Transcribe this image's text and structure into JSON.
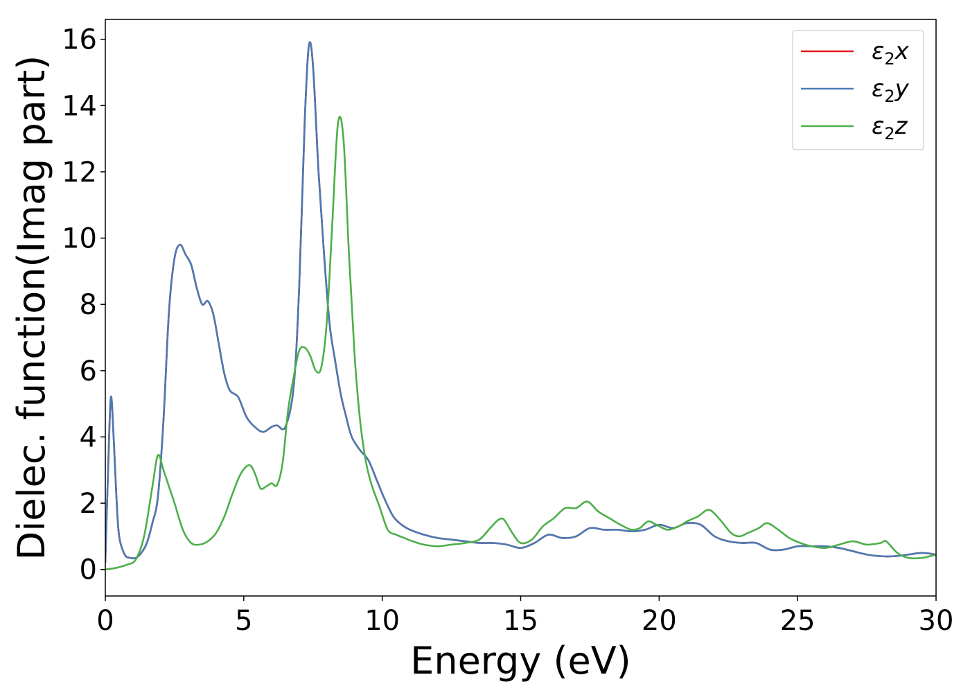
{
  "chart_data": {
    "type": "line",
    "xlabel": "Energy (eV)",
    "ylabel": "Dielec. function(Imag part)",
    "xlim": [
      0,
      30
    ],
    "ylim": [
      -0.8,
      16.6
    ],
    "xticks": [
      0,
      5,
      10,
      15,
      20,
      25,
      30
    ],
    "yticks": [
      0,
      2,
      4,
      6,
      8,
      10,
      12,
      14,
      16
    ],
    "grid": false,
    "legend_position": "top-right",
    "series": [
      {
        "name": "ε₂x",
        "legend_base": "ε",
        "legend_sub": "2",
        "legend_var": "x",
        "color": "#e41a1c",
        "x": [
          0,
          0.1,
          0.2,
          0.3,
          0.4,
          0.5,
          0.7,
          0.9,
          1.1,
          1.3,
          1.5,
          1.7,
          1.9,
          2.1,
          2.3,
          2.5,
          2.7,
          2.9,
          3.1,
          3.3,
          3.5,
          3.7,
          3.9,
          4.1,
          4.3,
          4.5,
          4.8,
          5.1,
          5.4,
          5.7,
          6.0,
          6.2,
          6.5,
          6.8,
          7.0,
          7.2,
          7.35,
          7.5,
          7.7,
          7.9,
          8.1,
          8.3,
          8.5,
          8.7,
          8.9,
          9.2,
          9.5,
          9.8,
          10.1,
          10.4,
          10.7,
          11.0,
          11.5,
          12.0,
          12.5,
          13.0,
          13.5,
          14.0,
          14.5,
          15.0,
          15.5,
          16.0,
          16.5,
          17.0,
          17.5,
          18.0,
          18.5,
          19.0,
          19.5,
          20.0,
          20.5,
          21.0,
          21.5,
          22.0,
          22.5,
          23.0,
          23.5,
          24.0,
          24.5,
          25.0,
          25.5,
          26.0,
          26.5,
          27.0,
          27.5,
          28.0,
          28.5,
          29.0,
          29.5,
          30.0
        ],
        "values": [
          0.2,
          3.0,
          5.2,
          4.0,
          2.2,
          1.0,
          0.45,
          0.35,
          0.35,
          0.5,
          0.8,
          1.4,
          2.2,
          4.5,
          7.8,
          9.4,
          9.8,
          9.5,
          9.2,
          8.5,
          8.0,
          8.1,
          7.7,
          6.8,
          5.9,
          5.4,
          5.2,
          4.6,
          4.3,
          4.15,
          4.3,
          4.35,
          4.3,
          5.5,
          8.5,
          13.5,
          15.8,
          15.2,
          12.0,
          9.5,
          7.4,
          6.3,
          5.3,
          4.6,
          4.0,
          3.6,
          3.3,
          2.7,
          2.1,
          1.6,
          1.35,
          1.2,
          1.05,
          0.95,
          0.9,
          0.85,
          0.8,
          0.8,
          0.75,
          0.65,
          0.8,
          1.05,
          0.95,
          1.0,
          1.25,
          1.2,
          1.2,
          1.15,
          1.2,
          1.35,
          1.25,
          1.4,
          1.35,
          1.0,
          0.85,
          0.8,
          0.8,
          0.6,
          0.6,
          0.7,
          0.7,
          0.7,
          0.65,
          0.55,
          0.45,
          0.4,
          0.4,
          0.45,
          0.5,
          0.45
        ]
      },
      {
        "name": "ε₂y",
        "legend_base": "ε",
        "legend_sub": "2",
        "legend_var": "y",
        "color": "#4a7ab3",
        "x": [
          0,
          0.1,
          0.2,
          0.3,
          0.4,
          0.5,
          0.7,
          0.9,
          1.1,
          1.3,
          1.5,
          1.7,
          1.9,
          2.1,
          2.3,
          2.5,
          2.7,
          2.9,
          3.1,
          3.3,
          3.5,
          3.7,
          3.9,
          4.1,
          4.3,
          4.5,
          4.8,
          5.1,
          5.4,
          5.7,
          6.0,
          6.2,
          6.5,
          6.8,
          7.0,
          7.2,
          7.35,
          7.5,
          7.7,
          7.9,
          8.1,
          8.3,
          8.5,
          8.7,
          8.9,
          9.2,
          9.5,
          9.8,
          10.1,
          10.4,
          10.7,
          11.0,
          11.5,
          12.0,
          12.5,
          13.0,
          13.5,
          14.0,
          14.5,
          15.0,
          15.5,
          16.0,
          16.5,
          17.0,
          17.5,
          18.0,
          18.5,
          19.0,
          19.5,
          20.0,
          20.5,
          21.0,
          21.5,
          22.0,
          22.5,
          23.0,
          23.5,
          24.0,
          24.5,
          25.0,
          25.5,
          26.0,
          26.5,
          27.0,
          27.5,
          28.0,
          28.5,
          29.0,
          29.5,
          30.0
        ],
        "values": [
          0.2,
          3.0,
          5.2,
          4.0,
          2.2,
          1.0,
          0.45,
          0.35,
          0.35,
          0.5,
          0.8,
          1.4,
          2.2,
          4.5,
          7.8,
          9.4,
          9.8,
          9.5,
          9.2,
          8.5,
          8.0,
          8.1,
          7.7,
          6.8,
          5.9,
          5.4,
          5.2,
          4.6,
          4.3,
          4.15,
          4.3,
          4.35,
          4.3,
          5.5,
          8.5,
          13.5,
          15.8,
          15.2,
          12.0,
          9.5,
          7.4,
          6.3,
          5.3,
          4.6,
          4.0,
          3.6,
          3.3,
          2.7,
          2.1,
          1.6,
          1.35,
          1.2,
          1.05,
          0.95,
          0.9,
          0.85,
          0.8,
          0.8,
          0.75,
          0.65,
          0.8,
          1.05,
          0.95,
          1.0,
          1.25,
          1.2,
          1.2,
          1.15,
          1.2,
          1.35,
          1.25,
          1.4,
          1.35,
          1.0,
          0.85,
          0.8,
          0.8,
          0.6,
          0.6,
          0.7,
          0.7,
          0.7,
          0.65,
          0.55,
          0.45,
          0.4,
          0.4,
          0.45,
          0.5,
          0.45
        ]
      },
      {
        "name": "ε₂z",
        "legend_base": "ε",
        "legend_sub": "2",
        "legend_var": "z",
        "color": "#4daf4a",
        "x": [
          0,
          0.4,
          0.8,
          1.1,
          1.4,
          1.7,
          1.9,
          2.1,
          2.3,
          2.5,
          2.8,
          3.1,
          3.4,
          3.7,
          4.0,
          4.3,
          4.6,
          4.9,
          5.2,
          5.4,
          5.6,
          5.8,
          6.0,
          6.2,
          6.4,
          6.6,
          6.8,
          7.0,
          7.2,
          7.4,
          7.6,
          7.8,
          8.0,
          8.2,
          8.4,
          8.6,
          8.8,
          9.0,
          9.2,
          9.4,
          9.6,
          9.9,
          10.2,
          10.5,
          10.8,
          11.1,
          11.5,
          12.0,
          12.5,
          13.0,
          13.5,
          13.9,
          14.2,
          14.4,
          14.7,
          15.0,
          15.4,
          15.8,
          16.2,
          16.6,
          17.0,
          17.4,
          17.8,
          18.2,
          18.6,
          19.0,
          19.3,
          19.6,
          19.9,
          20.3,
          20.7,
          21.0,
          21.4,
          21.8,
          22.2,
          22.6,
          22.9,
          23.2,
          23.6,
          23.9,
          24.3,
          24.7,
          25.1,
          25.5,
          26.0,
          26.5,
          27.0,
          27.5,
          28.0,
          28.2,
          28.6,
          29.0,
          29.5,
          30.0
        ],
        "values": [
          0.0,
          0.05,
          0.15,
          0.3,
          1.0,
          2.5,
          3.45,
          3.0,
          2.5,
          2.0,
          1.2,
          0.8,
          0.75,
          0.85,
          1.1,
          1.6,
          2.3,
          2.9,
          3.15,
          2.9,
          2.45,
          2.5,
          2.6,
          2.55,
          3.2,
          4.8,
          5.8,
          6.6,
          6.7,
          6.45,
          6.0,
          6.1,
          7.5,
          10.5,
          13.45,
          13.0,
          9.5,
          6.5,
          4.5,
          3.3,
          2.6,
          1.9,
          1.2,
          1.05,
          0.95,
          0.85,
          0.75,
          0.7,
          0.75,
          0.8,
          0.9,
          1.25,
          1.5,
          1.5,
          1.1,
          0.8,
          0.9,
          1.3,
          1.55,
          1.85,
          1.85,
          2.05,
          1.75,
          1.55,
          1.35,
          1.2,
          1.25,
          1.45,
          1.35,
          1.2,
          1.3,
          1.45,
          1.6,
          1.8,
          1.5,
          1.1,
          1.0,
          1.1,
          1.25,
          1.4,
          1.2,
          0.95,
          0.8,
          0.7,
          0.65,
          0.75,
          0.85,
          0.75,
          0.8,
          0.85,
          0.5,
          0.35,
          0.35,
          0.45
        ]
      }
    ]
  }
}
